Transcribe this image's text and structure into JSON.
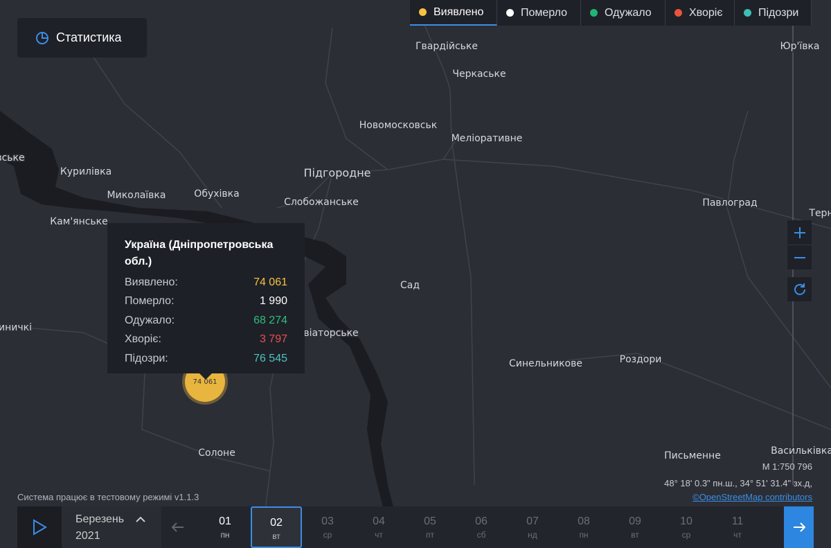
{
  "legend": [
    "Виявлено",
    "Померло",
    "Одужало",
    "Хворіє",
    "Підозри"
  ],
  "stats_button": "Статистика",
  "map_labels": [
    "Гвардійське",
    "Черкаське",
    "Юр'ївка",
    "Новомосковськ",
    "Меліоративне",
    "Підгородне",
    "Курилівка",
    "Миколаївка",
    "Обухівка",
    "Слобожанське",
    "Павлоград",
    "Кам'янське",
    "Сад",
    "Синельникове",
    "Роздори",
    "Солоне",
    "Письменне",
    "Васильківка",
    "вське",
    "иничкі",
    "Терн",
    "віаторське"
  ],
  "tooltip": {
    "title": "Україна (Дніпропетровська обл.)",
    "rows": [
      {
        "label": "Виявлено:",
        "value": "74 061"
      },
      {
        "label": "Померло:",
        "value": "1 990"
      },
      {
        "label": "Одужало:",
        "value": "68 274"
      },
      {
        "label": "Хворіє:",
        "value": "3 797"
      },
      {
        "label": "Підозри:",
        "value": "76 545"
      }
    ]
  },
  "marker_label": "74 061",
  "scale": "М 1:750 796",
  "coordinates": "48° 18' 0.3\" пн.ш., 34° 51' 31.4\" зх.д,",
  "attribution": "©OpenStreetMap contributors",
  "status": "Система працює в тестовому режимі v1.1.3",
  "timeline": {
    "month": "Березень",
    "year": "2021",
    "days": [
      {
        "day": "01",
        "weekday": "пн"
      },
      {
        "day": "02",
        "weekday": "вт"
      },
      {
        "day": "03",
        "weekday": "ср"
      },
      {
        "day": "04",
        "weekday": "чт"
      },
      {
        "day": "05",
        "weekday": "пт"
      },
      {
        "day": "06",
        "weekday": "сб"
      },
      {
        "day": "07",
        "weekday": "нд"
      },
      {
        "day": "08",
        "weekday": "пн"
      },
      {
        "day": "09",
        "weekday": "вт"
      },
      {
        "day": "10",
        "weekday": "ср"
      },
      {
        "day": "11",
        "weekday": "чт"
      }
    ]
  }
}
